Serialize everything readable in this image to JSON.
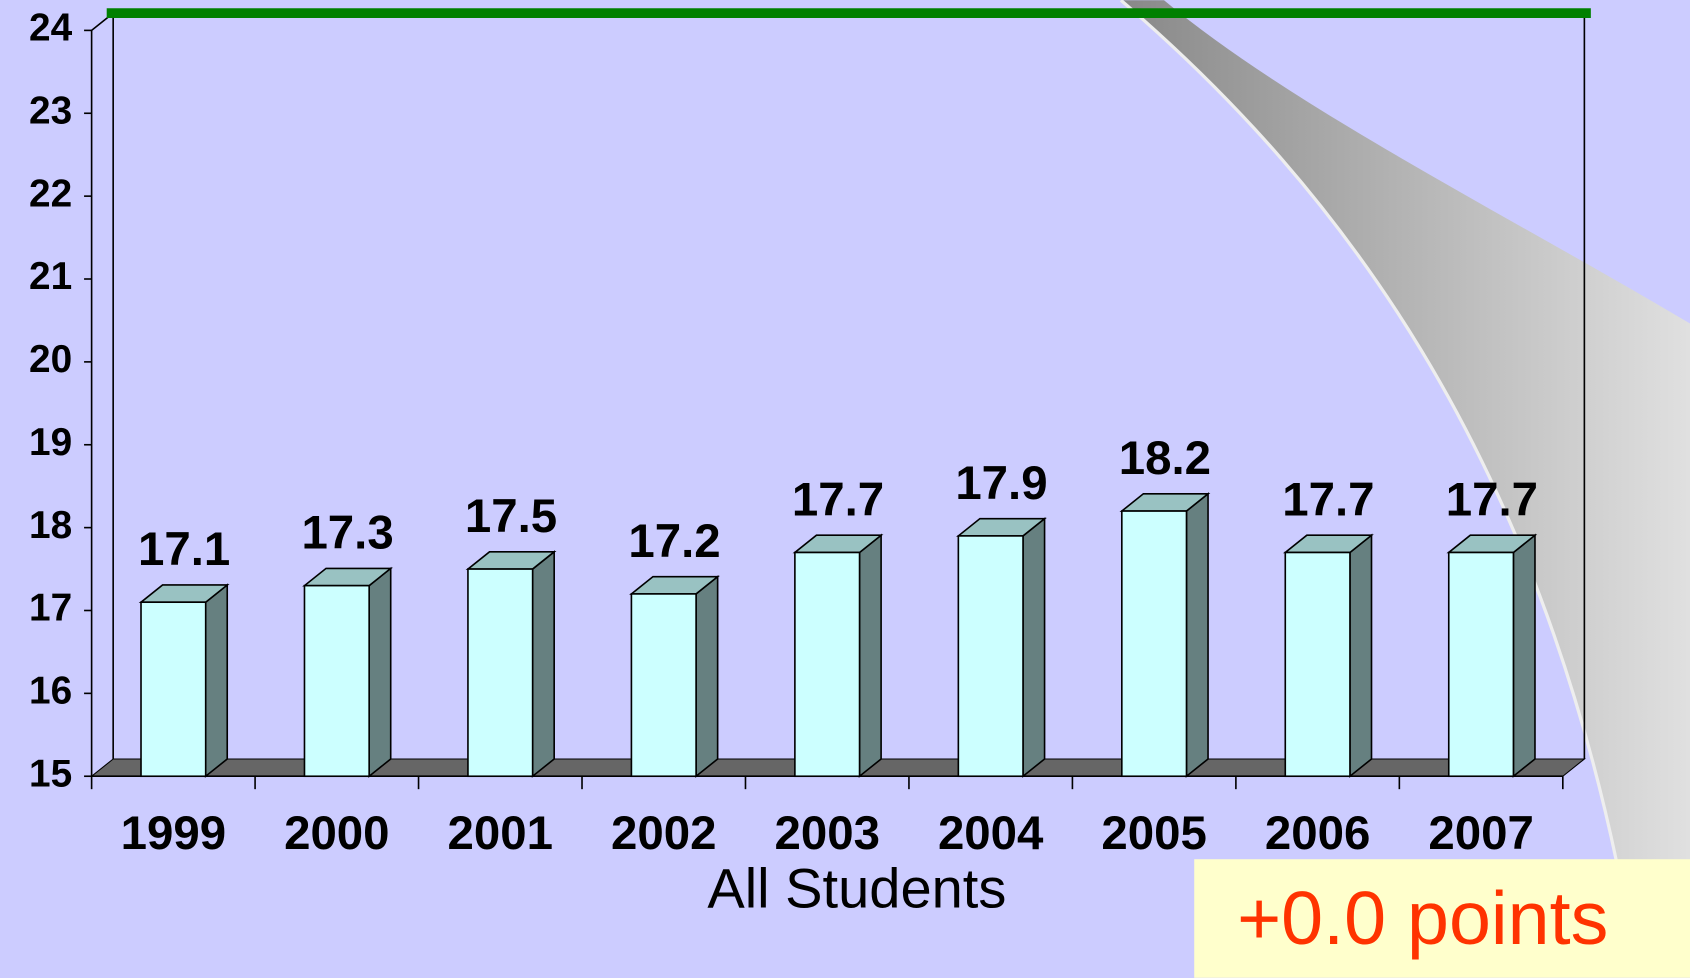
{
  "chart_data": {
    "type": "bar3d",
    "x_label": "All Students",
    "categories": [
      "1999",
      "2000",
      "2001",
      "2002",
      "2003",
      "2004",
      "2005",
      "2006",
      "2007"
    ],
    "values": [
      17.1,
      17.3,
      17.5,
      17.2,
      17.7,
      17.9,
      18.2,
      17.7,
      17.7
    ],
    "color": "#ccffff",
    "side_color": "#668080",
    "top_color": "#99c2c2",
    "target": 24,
    "target_color": "#008000",
    "ylim": [
      15,
      24
    ],
    "yticks": [
      15,
      16,
      17,
      18,
      19,
      20,
      21,
      22,
      23,
      24
    ],
    "annotation": "+0.0 points"
  }
}
